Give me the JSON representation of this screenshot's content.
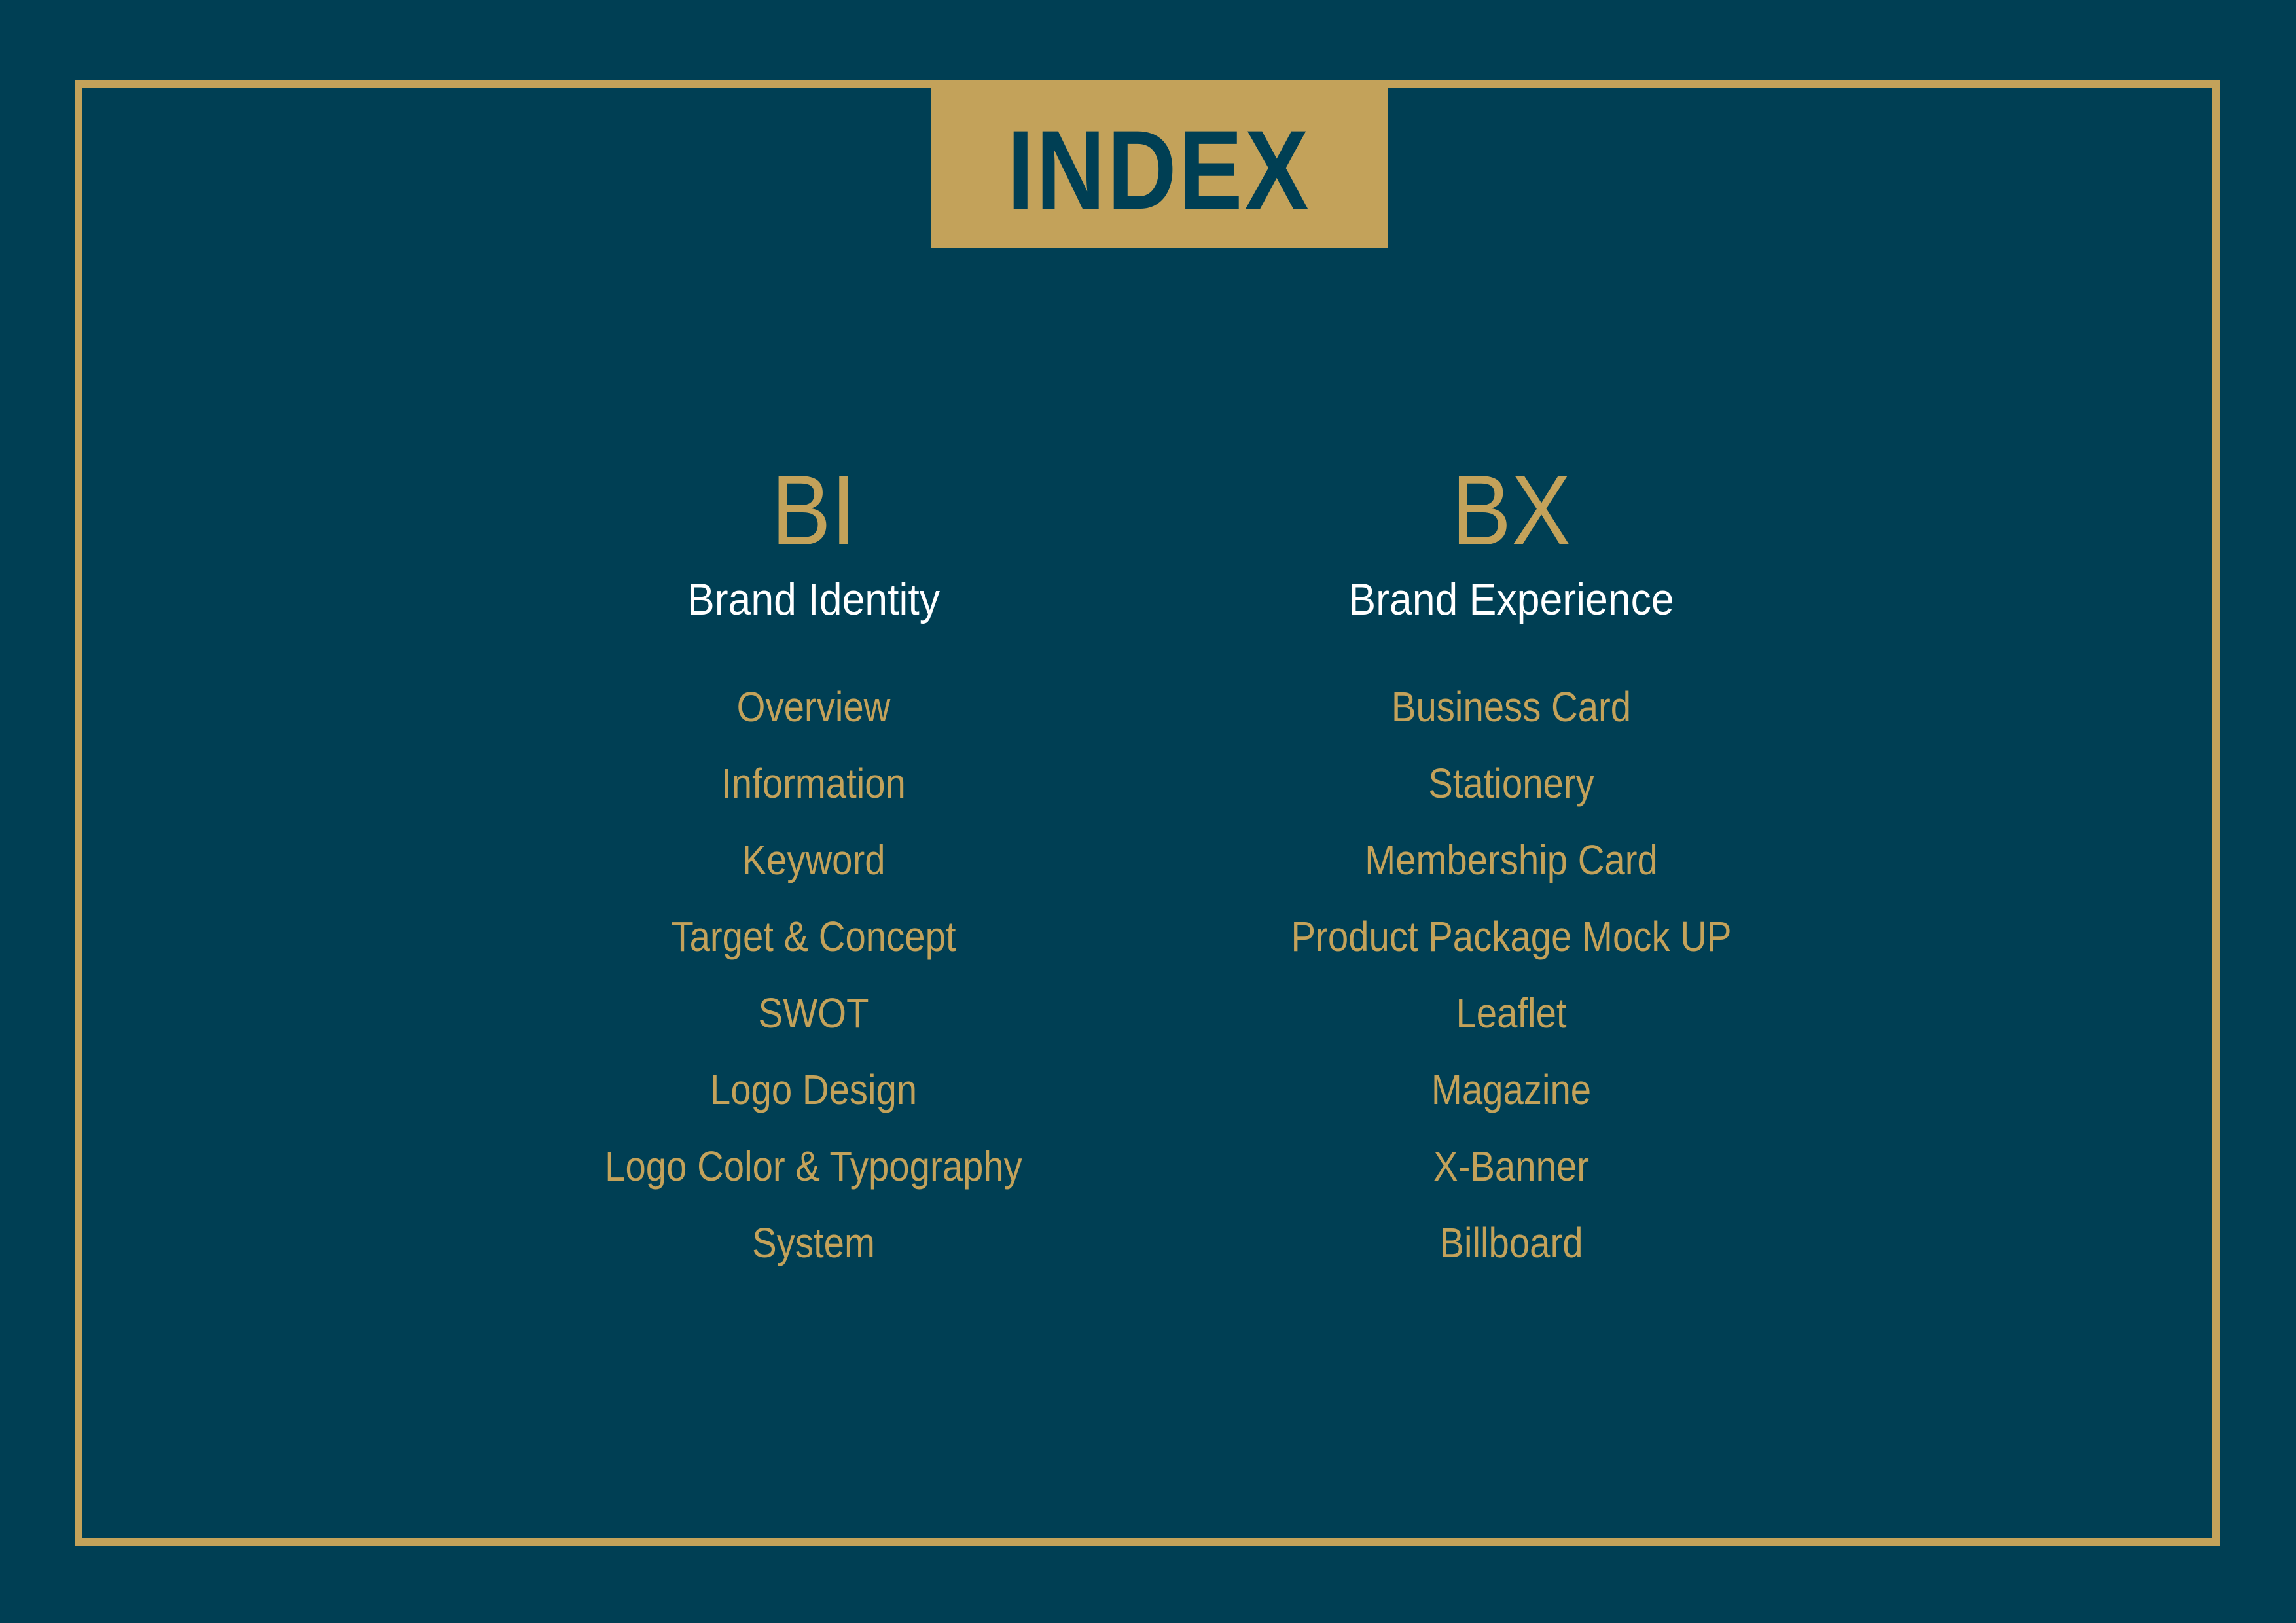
{
  "header": {
    "title": "INDEX"
  },
  "sections": [
    {
      "abbr": "BI",
      "subtitle": "Brand Identity",
      "items": [
        "Overview",
        "Information",
        "Keyword",
        "Target & Concept",
        "SWOT",
        "Logo Design",
        "Logo Color & Typography",
        "System"
      ]
    },
    {
      "abbr": "BX",
      "subtitle": "Brand Experience",
      "items": [
        "Business Card",
        "Stationery",
        "Membership Card",
        "Product Package Mock UP",
        "Leaflet",
        "Magazine",
        "X-Banner",
        "Billboard"
      ]
    }
  ],
  "colors": {
    "background": "#003f54",
    "accent": "#c3a25a",
    "subtitle": "#ffffff"
  }
}
